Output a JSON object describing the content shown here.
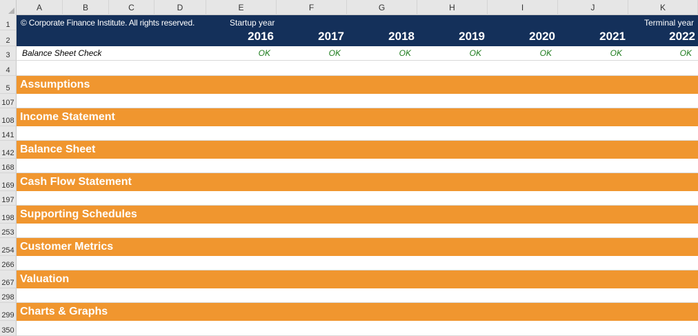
{
  "columns": [
    "A",
    "B",
    "C",
    "D",
    "E",
    "F",
    "G",
    "H",
    "I",
    "J",
    "K"
  ],
  "header": {
    "copyright": "© Corporate Finance Institute. All rights reserved.",
    "startup_label": "Startup year",
    "terminal_label": "Terminal year",
    "years": [
      "2016",
      "2017",
      "2018",
      "2019",
      "2020",
      "2021",
      "2022"
    ]
  },
  "check": {
    "label": "Balance Sheet Check",
    "values": [
      "OK",
      "OK",
      "OK",
      "OK",
      "OK",
      "OK",
      "OK"
    ]
  },
  "row_numbers": [
    "1",
    "2",
    "3",
    "4",
    "5",
    "107",
    "108",
    "141",
    "142",
    "168",
    "169",
    "197",
    "198",
    "253",
    "254",
    "266",
    "267",
    "298",
    "299",
    "350"
  ],
  "sections": [
    {
      "row": "5",
      "title": "Assumptions"
    },
    {
      "row": "108",
      "title": "Income Statement"
    },
    {
      "row": "142",
      "title": "Balance Sheet"
    },
    {
      "row": "169",
      "title": "Cash Flow Statement"
    },
    {
      "row": "198",
      "title": "Supporting Schedules"
    },
    {
      "row": "254",
      "title": "Customer Metrics"
    },
    {
      "row": "267",
      "title": "Valuation"
    },
    {
      "row": "299",
      "title": "Charts & Graphs"
    }
  ],
  "colors": {
    "header_navy": "#14305a",
    "section_orange": "#f0962f",
    "ok_green": "#1a7a1a"
  }
}
